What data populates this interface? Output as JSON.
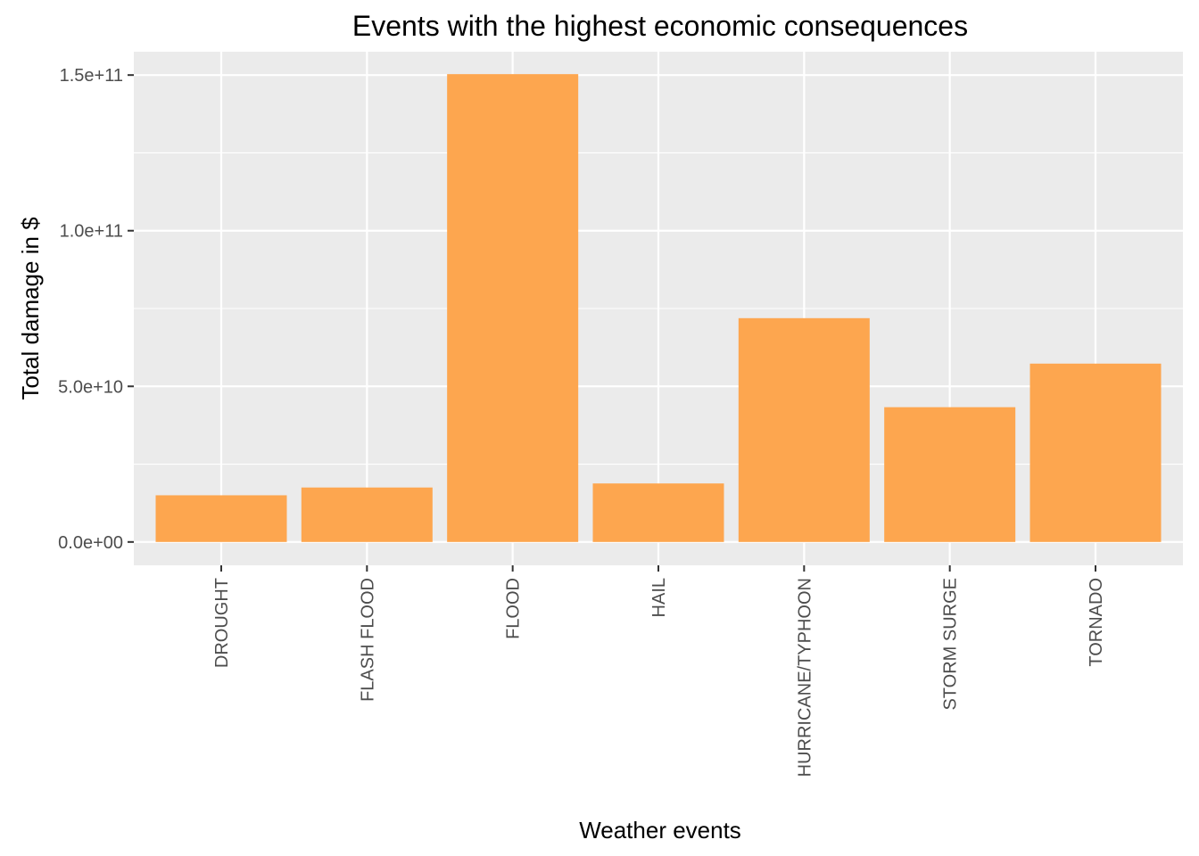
{
  "chart_data": {
    "type": "bar",
    "title": "Events with the highest economic consequences",
    "xlabel": "Weather events",
    "ylabel": "Total damage in $",
    "categories": [
      "DROUGHT",
      "FLASH FLOOD",
      "FLOOD",
      "HAIL",
      "HURRICANE/TYPHOON",
      "STORM SURGE",
      "TORNADO"
    ],
    "values": [
      15000000000,
      17500000000,
      150300000000,
      18800000000,
      71900000000,
      43300000000,
      57300000000
    ],
    "ylim": [
      -7500000000,
      157500000000
    ],
    "yticks": [
      0,
      50000000000,
      100000000000,
      150000000000
    ],
    "ytick_labels": [
      "0.0e+00",
      "5.0e+10",
      "1.0e+11",
      "1.5e+11"
    ],
    "bar_color": "#FDA64F",
    "panel_background": "#EBEBEB",
    "grid": true
  }
}
